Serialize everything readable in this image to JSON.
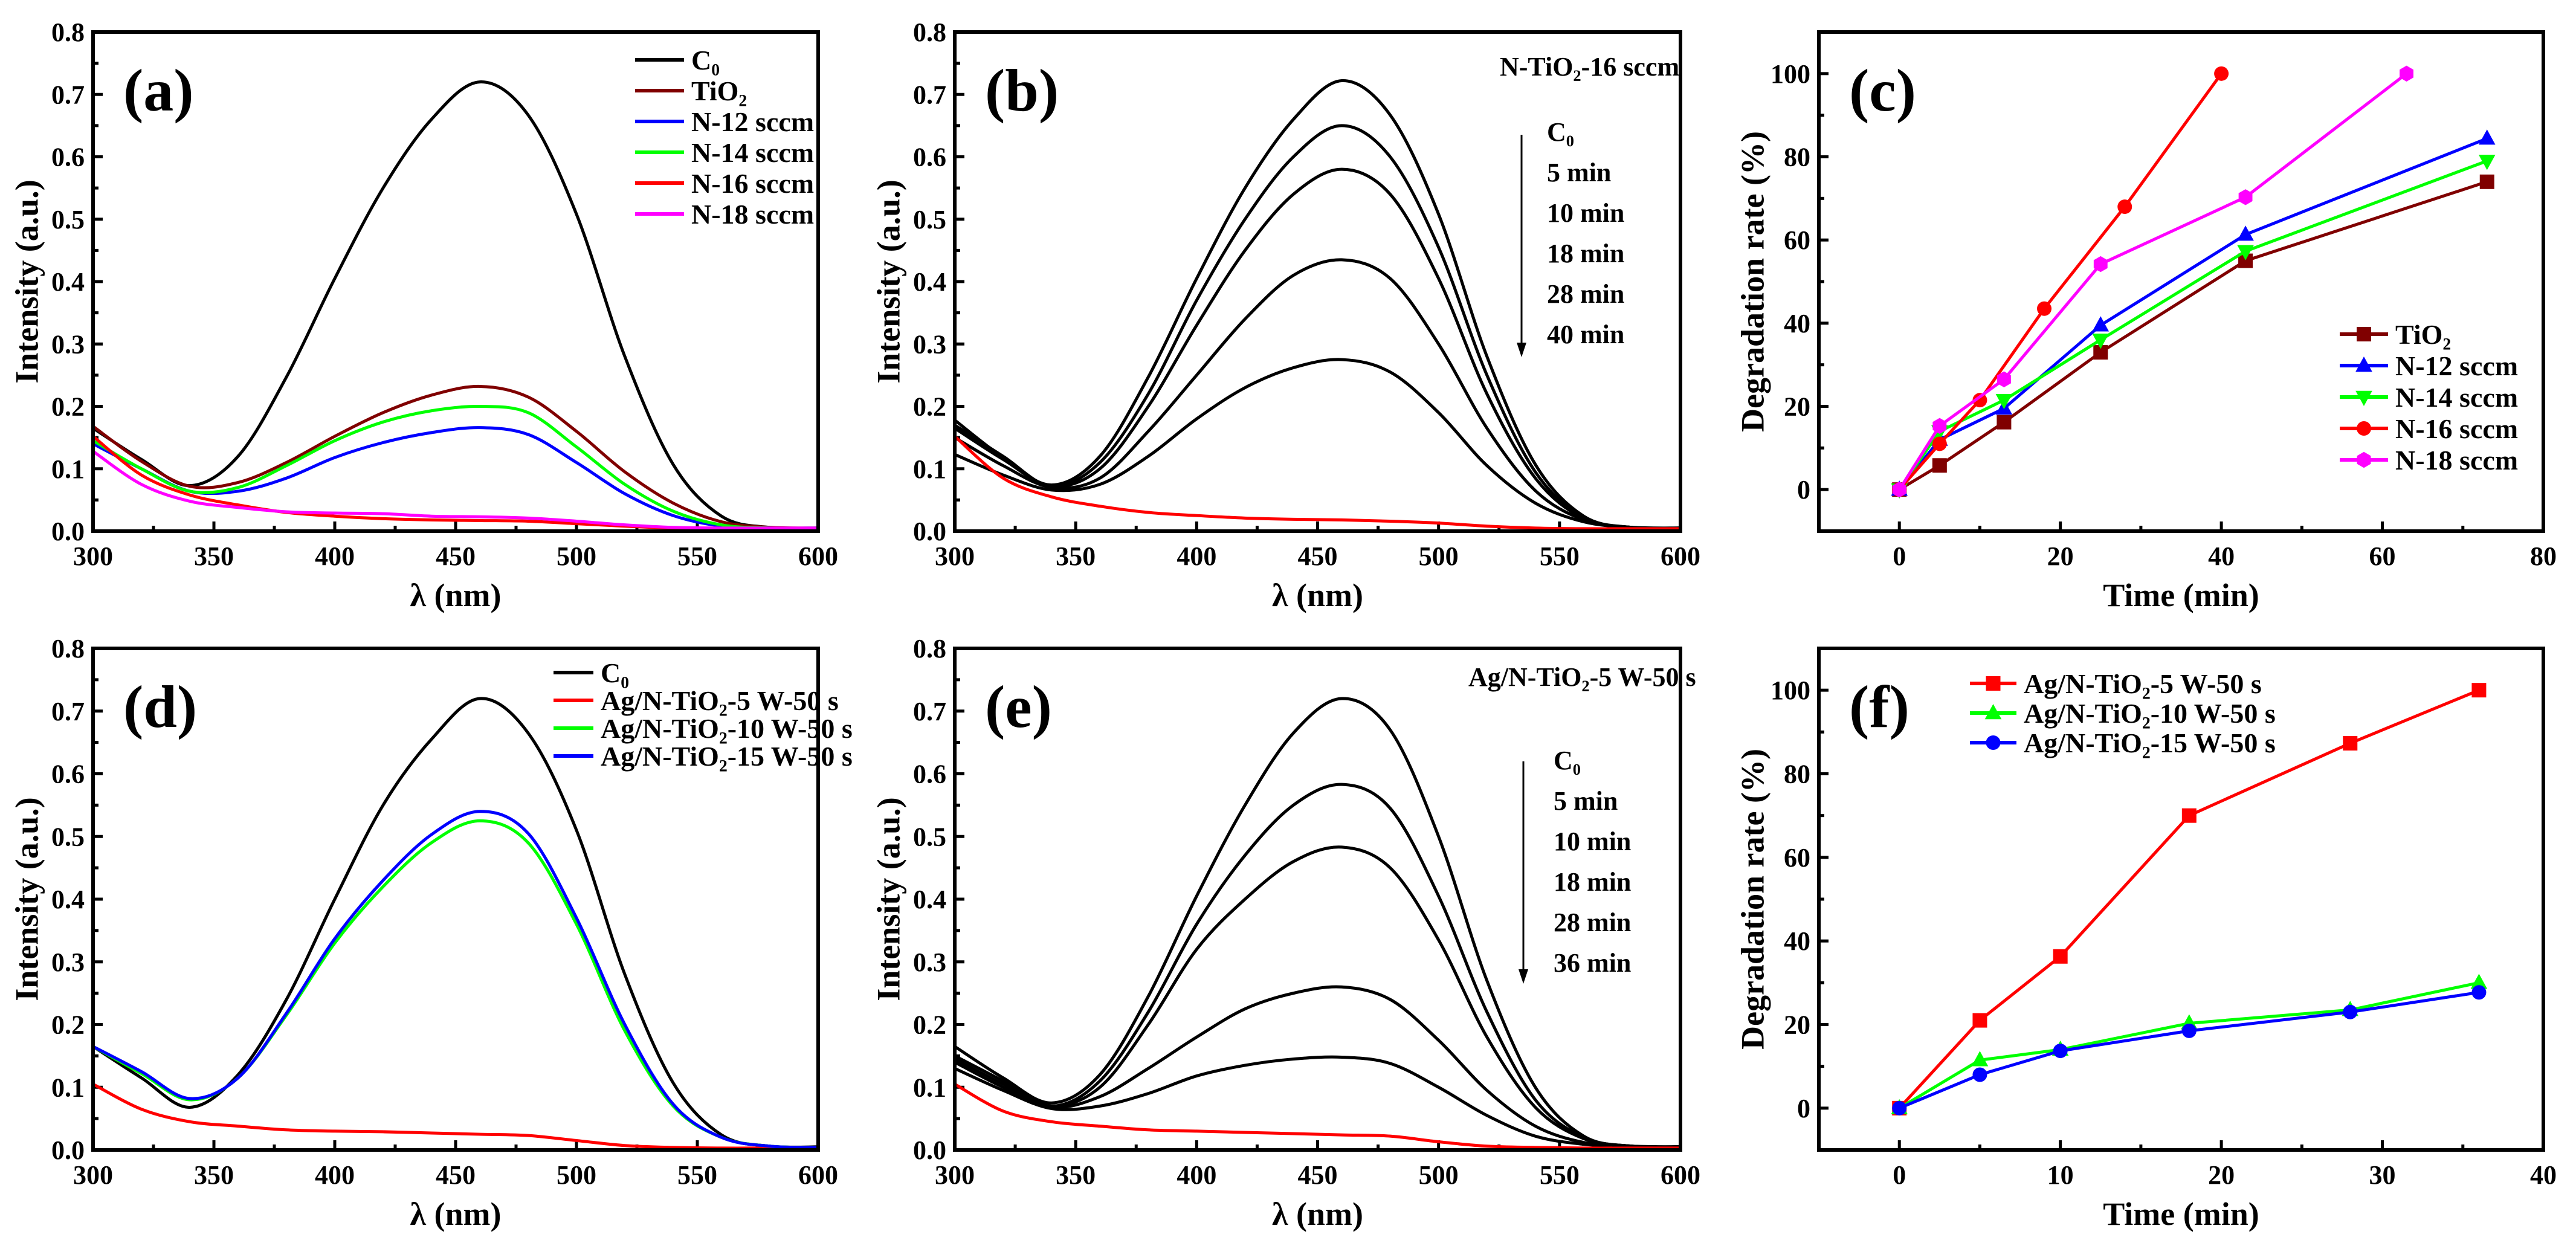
{
  "figure": {
    "panels": [
      "(a)",
      "(b)",
      "(c)",
      "(d)",
      "(e)",
      "(f)"
    ]
  },
  "chart_data": [
    {
      "id": "a",
      "type": "line",
      "label": "(a)",
      "xlabel": "λ (nm)",
      "ylabel": "Intensity (a.u.)",
      "xlim": [
        300,
        600
      ],
      "ylim": [
        0,
        0.8
      ],
      "xticks": [
        "300",
        "350",
        "400",
        "450",
        "500",
        "550",
        "600"
      ],
      "yticks": [
        "0.0",
        "0.1",
        "0.2",
        "0.3",
        "0.4",
        "0.5",
        "0.6",
        "0.7",
        "0.8"
      ],
      "x": [
        300,
        320,
        340,
        360,
        380,
        400,
        420,
        440,
        460,
        480,
        500,
        520,
        540,
        560,
        580,
        600
      ],
      "legend_position": "top-right",
      "series": [
        {
          "name": "C₀",
          "color": "#000000",
          "values": [
            0.165,
            0.115,
            0.073,
            0.12,
            0.247,
            0.405,
            0.55,
            0.66,
            0.72,
            0.667,
            0.508,
            0.28,
            0.107,
            0.024,
            0.006,
            0.005
          ]
        },
        {
          "name": "TiO₂",
          "color": "#800000",
          "values": [
            0.168,
            0.112,
            0.072,
            0.078,
            0.11,
            0.152,
            0.19,
            0.218,
            0.232,
            0.215,
            0.16,
            0.095,
            0.045,
            0.015,
            0.006,
            0.005
          ]
        },
        {
          "name": "N-12 sccm",
          "color": "#0000ff",
          "values": [
            0.14,
            0.1,
            0.064,
            0.064,
            0.085,
            0.118,
            0.142,
            0.158,
            0.166,
            0.155,
            0.11,
            0.06,
            0.025,
            0.008,
            0.005,
            0.005
          ]
        },
        {
          "name": "N-14 sccm",
          "color": "#00ff00",
          "values": [
            0.145,
            0.1,
            0.064,
            0.07,
            0.105,
            0.145,
            0.175,
            0.193,
            0.2,
            0.19,
            0.135,
            0.075,
            0.032,
            0.01,
            0.005,
            0.005
          ]
        },
        {
          "name": "N-16 sccm",
          "color": "#ff0000",
          "values": [
            0.152,
            0.09,
            0.058,
            0.042,
            0.03,
            0.024,
            0.02,
            0.018,
            0.017,
            0.016,
            0.012,
            0.008,
            0.005,
            0.004,
            0.004,
            0.004
          ]
        },
        {
          "name": "N-18 sccm",
          "color": "#ff00ff",
          "values": [
            0.128,
            0.075,
            0.048,
            0.038,
            0.031,
            0.029,
            0.028,
            0.024,
            0.023,
            0.021,
            0.016,
            0.01,
            0.006,
            0.005,
            0.005,
            0.005
          ]
        }
      ]
    },
    {
      "id": "b",
      "type": "line",
      "label": "(b)",
      "xlabel": "λ (nm)",
      "ylabel": "Intensity (a.u.)",
      "xlim": [
        300,
        600
      ],
      "ylim": [
        0,
        0.8
      ],
      "xticks": [
        "300",
        "350",
        "400",
        "450",
        "500",
        "550",
        "600"
      ],
      "yticks": [
        "0.0",
        "0.1",
        "0.2",
        "0.3",
        "0.4",
        "0.5",
        "0.6",
        "0.7",
        "0.8"
      ],
      "x": [
        300,
        320,
        340,
        360,
        380,
        400,
        420,
        440,
        460,
        480,
        500,
        520,
        540,
        560,
        580,
        600
      ],
      "annotation_title": "N-TiO₂-16 sccm",
      "annotation_labels": [
        "C₀",
        "5 min",
        "10 min",
        "18 min",
        "28 min",
        "40 min"
      ],
      "series": [
        {
          "name": "C₀",
          "color": "#000000",
          "values": [
            0.178,
            0.118,
            0.074,
            0.12,
            0.247,
            0.405,
            0.55,
            0.66,
            0.722,
            0.667,
            0.508,
            0.28,
            0.107,
            0.024,
            0.006,
            0.005
          ]
        },
        {
          "name": "5 min",
          "color": "#000000",
          "values": [
            0.17,
            0.12,
            0.072,
            0.11,
            0.22,
            0.37,
            0.5,
            0.6,
            0.65,
            0.6,
            0.455,
            0.25,
            0.095,
            0.022,
            0.006,
            0.005
          ]
        },
        {
          "name": "10 min",
          "color": "#000000",
          "values": [
            0.165,
            0.115,
            0.072,
            0.1,
            0.2,
            0.33,
            0.45,
            0.54,
            0.58,
            0.54,
            0.405,
            0.22,
            0.085,
            0.02,
            0.006,
            0.005
          ]
        },
        {
          "name": "18 min",
          "color": "#000000",
          "values": [
            0.15,
            0.105,
            0.07,
            0.085,
            0.16,
            0.25,
            0.34,
            0.41,
            0.435,
            0.405,
            0.3,
            0.165,
            0.065,
            0.018,
            0.006,
            0.005
          ]
        },
        {
          "name": "28 min",
          "color": "#000000",
          "values": [
            0.123,
            0.09,
            0.066,
            0.075,
            0.12,
            0.18,
            0.23,
            0.262,
            0.275,
            0.255,
            0.19,
            0.105,
            0.045,
            0.015,
            0.006,
            0.005
          ]
        },
        {
          "name": "40 min",
          "color": "#ff0000",
          "values": [
            0.152,
            0.085,
            0.055,
            0.04,
            0.03,
            0.025,
            0.021,
            0.019,
            0.018,
            0.016,
            0.013,
            0.008,
            0.005,
            0.004,
            0.004,
            0.004
          ]
        }
      ]
    },
    {
      "id": "c",
      "type": "line",
      "label": "(c)",
      "xlabel": "Time (min)",
      "ylabel": "Degradation rate (%)",
      "xlim": [
        -10,
        80
      ],
      "ylim": [
        -10,
        110
      ],
      "xticks": [
        "0",
        "20",
        "40",
        "60",
        "80"
      ],
      "yticks": [
        "0",
        "20",
        "40",
        "60",
        "80",
        "100"
      ],
      "legend_position": "lower-right",
      "series": [
        {
          "name": "TiO₂",
          "color": "#800000",
          "marker": "square",
          "x": [
            0,
            5,
            13,
            25,
            43,
            73
          ],
          "values": [
            0,
            5.8,
            16.2,
            33,
            55,
            74
          ]
        },
        {
          "name": "N-12 sccm",
          "color": "#0000ff",
          "marker": "triangle-up",
          "x": [
            0,
            5,
            13,
            25,
            43,
            73
          ],
          "values": [
            0,
            12,
            19.5,
            39.5,
            61.3,
            84.4
          ]
        },
        {
          "name": "N-14 sccm",
          "color": "#00ff00",
          "marker": "triangle-down",
          "x": [
            0,
            5,
            13,
            25,
            43,
            73
          ],
          "values": [
            0,
            14,
            21.5,
            36,
            57.3,
            79
          ]
        },
        {
          "name": "N-16 sccm",
          "color": "#ff0000",
          "marker": "circle",
          "x": [
            0,
            5,
            10,
            18,
            28,
            40
          ],
          "values": [
            0,
            11,
            21.5,
            43.5,
            68,
            100
          ]
        },
        {
          "name": "N-18 sccm",
          "color": "#ff00ff",
          "marker": "hexagon",
          "x": [
            0,
            5,
            13,
            25,
            43,
            63
          ],
          "values": [
            0,
            15.3,
            26.5,
            54.2,
            70.3,
            100
          ]
        }
      ]
    },
    {
      "id": "d",
      "type": "line",
      "label": "(d)",
      "xlabel": "λ (nm)",
      "ylabel": "Intensity (a.u.)",
      "xlim": [
        300,
        600
      ],
      "ylim": [
        0,
        0.8
      ],
      "xticks": [
        "300",
        "350",
        "400",
        "450",
        "500",
        "550",
        "600"
      ],
      "yticks": [
        "0.0",
        "0.1",
        "0.2",
        "0.3",
        "0.4",
        "0.5",
        "0.6",
        "0.7",
        "0.8"
      ],
      "x": [
        300,
        320,
        340,
        360,
        380,
        400,
        420,
        440,
        460,
        480,
        500,
        520,
        540,
        560,
        580,
        600
      ],
      "legend_position": "top-right",
      "series": [
        {
          "name": "C₀",
          "color": "#000000",
          "values": [
            0.165,
            0.115,
            0.068,
            0.12,
            0.24,
            0.4,
            0.55,
            0.655,
            0.72,
            0.665,
            0.51,
            0.28,
            0.107,
            0.024,
            0.006,
            0.005
          ]
        },
        {
          "name": "Ag/N-TiO₂-5 W-50 s",
          "color": "#ff0000",
          "values": [
            0.105,
            0.065,
            0.045,
            0.038,
            0.032,
            0.03,
            0.029,
            0.027,
            0.025,
            0.023,
            0.015,
            0.007,
            0.004,
            0.003,
            0.003,
            0.003
          ]
        },
        {
          "name": "Ag/N-TiO₂-10 W-50 s",
          "color": "#00ff00",
          "values": [
            0.165,
            0.122,
            0.08,
            0.115,
            0.215,
            0.33,
            0.42,
            0.49,
            0.525,
            0.49,
            0.36,
            0.19,
            0.07,
            0.02,
            0.006,
            0.004
          ]
        },
        {
          "name": "Ag/N-TiO₂-15 W-50 s",
          "color": "#0000ff",
          "values": [
            0.165,
            0.125,
            0.082,
            0.115,
            0.218,
            0.337,
            0.43,
            0.503,
            0.54,
            0.505,
            0.37,
            0.2,
            0.073,
            0.02,
            0.006,
            0.004
          ]
        }
      ]
    },
    {
      "id": "e",
      "type": "line",
      "label": "(e)",
      "xlabel": "λ (nm)",
      "ylabel": "Intensity (a.u.)",
      "xlim": [
        300,
        600
      ],
      "ylim": [
        0,
        0.8
      ],
      "xticks": [
        "300",
        "350",
        "400",
        "450",
        "500",
        "550",
        "600"
      ],
      "yticks": [
        "0.0",
        "0.1",
        "0.2",
        "0.3",
        "0.4",
        "0.5",
        "0.6",
        "0.7",
        "0.8"
      ],
      "x": [
        300,
        320,
        340,
        360,
        380,
        400,
        420,
        440,
        460,
        480,
        500,
        520,
        540,
        560,
        580,
        600
      ],
      "annotation_title": "Ag/N-TiO₂-5 W-50 s",
      "annotation_labels": [
        "C₀",
        "5 min",
        "10 min",
        "18 min",
        "28 min",
        "36 min"
      ],
      "series": [
        {
          "name": "C₀",
          "color": "#000000",
          "values": [
            0.165,
            0.115,
            0.075,
            0.12,
            0.245,
            0.405,
            0.55,
            0.665,
            0.72,
            0.67,
            0.5,
            0.27,
            0.1,
            0.022,
            0.006,
            0.005
          ]
        },
        {
          "name": "5 min",
          "color": "#000000",
          "values": [
            0.15,
            0.11,
            0.07,
            0.11,
            0.22,
            0.36,
            0.47,
            0.55,
            0.583,
            0.545,
            0.405,
            0.22,
            0.08,
            0.02,
            0.006,
            0.005
          ]
        },
        {
          "name": "10 min",
          "color": "#000000",
          "values": [
            0.145,
            0.105,
            0.07,
            0.1,
            0.2,
            0.32,
            0.4,
            0.46,
            0.483,
            0.45,
            0.335,
            0.18,
            0.068,
            0.018,
            0.006,
            0.005
          ]
        },
        {
          "name": "18 min",
          "color": "#000000",
          "values": [
            0.14,
            0.1,
            0.068,
            0.085,
            0.13,
            0.18,
            0.225,
            0.25,
            0.26,
            0.24,
            0.175,
            0.095,
            0.038,
            0.012,
            0.006,
            0.005
          ]
        },
        {
          "name": "28 min",
          "color": "#000000",
          "values": [
            0.13,
            0.095,
            0.066,
            0.07,
            0.09,
            0.118,
            0.135,
            0.145,
            0.148,
            0.138,
            0.1,
            0.055,
            0.022,
            0.009,
            0.005,
            0.005
          ]
        },
        {
          "name": "36 min",
          "color": "#ff0000",
          "values": [
            0.105,
            0.062,
            0.045,
            0.038,
            0.032,
            0.03,
            0.028,
            0.026,
            0.024,
            0.022,
            0.013,
            0.006,
            0.004,
            0.003,
            0.003,
            0.003
          ]
        }
      ]
    },
    {
      "id": "f",
      "type": "line",
      "label": "(f)",
      "xlabel": "Time (min)",
      "ylabel": "Degradation rate (%)",
      "xlim": [
        -5,
        40
      ],
      "ylim": [
        -10,
        110
      ],
      "xticks": [
        "0",
        "10",
        "20",
        "30",
        "40"
      ],
      "yticks": [
        "0",
        "20",
        "40",
        "60",
        "80",
        "100"
      ],
      "legend_position": "top-left",
      "series": [
        {
          "name": "Ag/N-TiO₂-5 W-50 s",
          "color": "#ff0000",
          "marker": "square",
          "x": [
            0,
            5,
            10,
            18,
            28,
            36
          ],
          "values": [
            0,
            21,
            36.3,
            70,
            87.3,
            100
          ]
        },
        {
          "name": "Ag/N-TiO₂-10 W-50 s",
          "color": "#00ff00",
          "marker": "triangle-up",
          "x": [
            0,
            5,
            10,
            18,
            28,
            36
          ],
          "values": [
            0,
            11.5,
            14,
            20.3,
            23.5,
            30
          ]
        },
        {
          "name": "Ag/N-TiO₂-15 W-50 s",
          "color": "#0000ff",
          "marker": "circle",
          "x": [
            0,
            5,
            10,
            18,
            28,
            36
          ],
          "values": [
            0,
            8,
            13.7,
            18.5,
            23,
            27.7
          ]
        }
      ]
    }
  ]
}
